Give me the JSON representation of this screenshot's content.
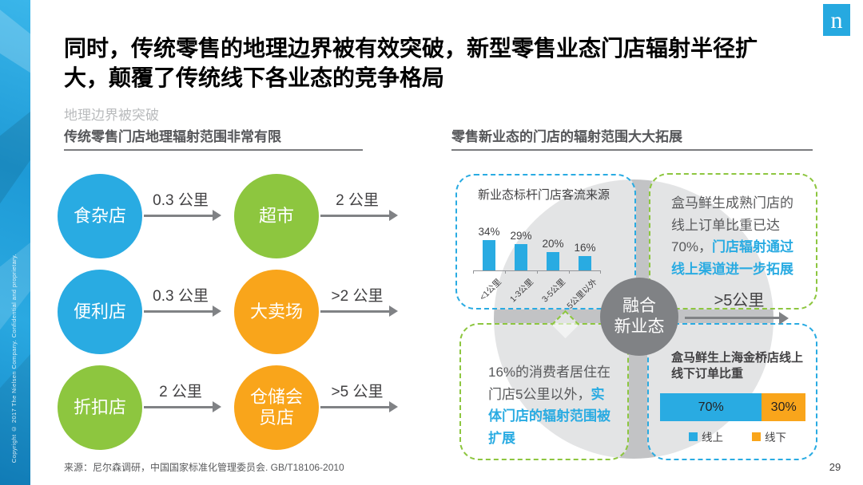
{
  "slide": {
    "title": "同时，传统零售的地理边界被有效突破，新型零售业态门店辐射半径扩大，颠覆了传统线下各业态的竞争格局",
    "subtitle": "地理边界被突破",
    "source": "来源：尼尔森调研，中国国家标准化管理委员会. GB/T18106-2010",
    "page_number": "29",
    "copyright": "Copyright © 2017 The Nielsen Company. Confidential and proprietary.",
    "logo_letter": "n"
  },
  "left_panel": {
    "header": "传统零售门店地理辐射范围非常有限",
    "stores": [
      {
        "name": "食杂店",
        "distance": "0.3 公里",
        "color": "#29abe2"
      },
      {
        "name": "超市",
        "distance": "2 公里",
        "color": "#8dc63f"
      },
      {
        "name": "便利店",
        "distance": "0.3 公里",
        "color": "#29abe2"
      },
      {
        "name": "大卖场",
        "distance": ">2 公里",
        "color": "#f9a51b"
      },
      {
        "name": "折扣店",
        "distance": "2 公里",
        "color": "#8dc63f"
      },
      {
        "name": "仓储会员店",
        "distance": ">5 公里",
        "color": "#f9a51b"
      }
    ]
  },
  "right_panel": {
    "header": "零售新业态的门店的辐射范围大大拓展",
    "center_circle": {
      "line1": "融合",
      "line2": "新业态"
    },
    "center_arrow_label": ">5公里",
    "hema_mature": {
      "normal": "盒马鲜生成熟门店的线上订单比重已达70%，",
      "highlight": "门店辐射通过线上渠道进一步拓展"
    },
    "consumer": {
      "normal": "16%的消费者居住在门店5公里以外，",
      "highlight": "实体门店的辐射范围被扩展"
    }
  },
  "chart_data": [
    {
      "type": "bar",
      "title": "新业态标杆门店客流来源",
      "categories": [
        "<1公里",
        "1-3公里",
        "3-5公里",
        "5公里以外"
      ],
      "values": [
        34,
        29,
        20,
        16
      ],
      "value_labels": [
        "34%",
        "29%",
        "20%",
        "16%"
      ],
      "unit": "%",
      "bar_color": "#29abe2",
      "ylim": [
        0,
        40
      ],
      "grid": false,
      "legend_position": "none"
    },
    {
      "type": "stacked-bar",
      "title": "盒马鲜生上海金桥店线上线下订单比重",
      "series": [
        {
          "name": "线上",
          "value": 70,
          "color": "#29abe2"
        },
        {
          "name": "线下",
          "value": 30,
          "color": "#f9a51b"
        }
      ],
      "value_labels": [
        "70%",
        "30%"
      ],
      "legend_position": "bottom"
    }
  ],
  "colors": {
    "accent_blue": "#29abe2",
    "accent_green": "#8dc63f",
    "accent_orange": "#f9a51b",
    "dark_gray": "#58595b",
    "mid_gray": "#808285",
    "circle_gray": "#c2c3c5"
  }
}
